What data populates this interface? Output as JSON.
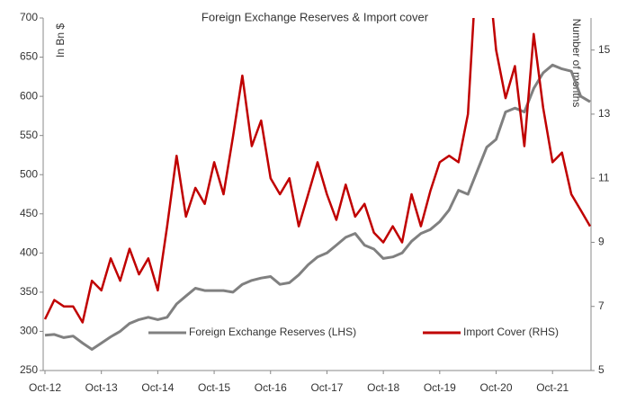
{
  "chart_data": {
    "type": "line",
    "title": "Foreign Exchange Reserves & Import cover",
    "y_label": "In Bn $",
    "y2_label": "Number of months",
    "categories": [
      "Oct-12",
      null,
      null,
      null,
      null,
      null,
      "Oct-13",
      null,
      null,
      null,
      null,
      null,
      "Oct-14",
      null,
      null,
      null,
      null,
      null,
      "Oct-15",
      null,
      null,
      null,
      null,
      null,
      "Oct-16",
      null,
      null,
      null,
      null,
      null,
      "Oct-17",
      null,
      null,
      null,
      null,
      null,
      "Oct-18",
      null,
      null,
      null,
      null,
      null,
      "Oct-19",
      null,
      null,
      null,
      null,
      null,
      "Oct-20",
      null,
      null,
      null,
      null,
      null,
      "Oct-21",
      null,
      null,
      null,
      null
    ],
    "series": [
      {
        "name": "Foreign Exchange Reserves (LHS)",
        "color": "#808080",
        "axis": "y",
        "values": [
          295,
          296,
          292,
          294,
          285,
          277,
          285,
          293,
          300,
          310,
          315,
          318,
          315,
          318,
          335,
          345,
          355,
          352,
          352,
          352,
          350,
          360,
          365,
          368,
          370,
          360,
          362,
          372,
          385,
          395,
          400,
          410,
          420,
          425,
          410,
          405,
          393,
          395,
          400,
          415,
          425,
          430,
          440,
          455,
          480,
          475,
          505,
          535,
          545,
          580,
          585,
          580,
          610,
          630,
          640,
          635,
          632,
          600,
          593
        ]
      },
      {
        "name": "Import Cover (RHS)",
        "color": "#c00000",
        "axis": "y2",
        "values": [
          6.6,
          7.2,
          7.0,
          7.0,
          6.5,
          7.8,
          7.5,
          8.5,
          7.8,
          8.8,
          8.0,
          8.5,
          7.5,
          9.5,
          11.7,
          9.8,
          10.7,
          10.2,
          11.5,
          10.5,
          12.3,
          14.2,
          12.0,
          12.8,
          11.0,
          10.5,
          11.0,
          9.5,
          10.5,
          11.5,
          10.5,
          9.7,
          10.8,
          9.8,
          10.2,
          9.3,
          9.0,
          9.5,
          9.0,
          10.5,
          9.5,
          10.6,
          11.5,
          11.7,
          11.5,
          13.0,
          18.0,
          18.0,
          15.0,
          13.5,
          14.5,
          12.0,
          15.5,
          13.2,
          11.5,
          11.8,
          10.5,
          10.0,
          9.5
        ]
      }
    ],
    "ylim": [
      250,
      700
    ],
    "yticks": [
      250,
      300,
      350,
      400,
      450,
      500,
      550,
      600,
      650,
      700
    ],
    "y2lim": [
      5,
      16
    ],
    "y2ticks": [
      5,
      7,
      9,
      11,
      13,
      15
    ],
    "grid": false
  }
}
